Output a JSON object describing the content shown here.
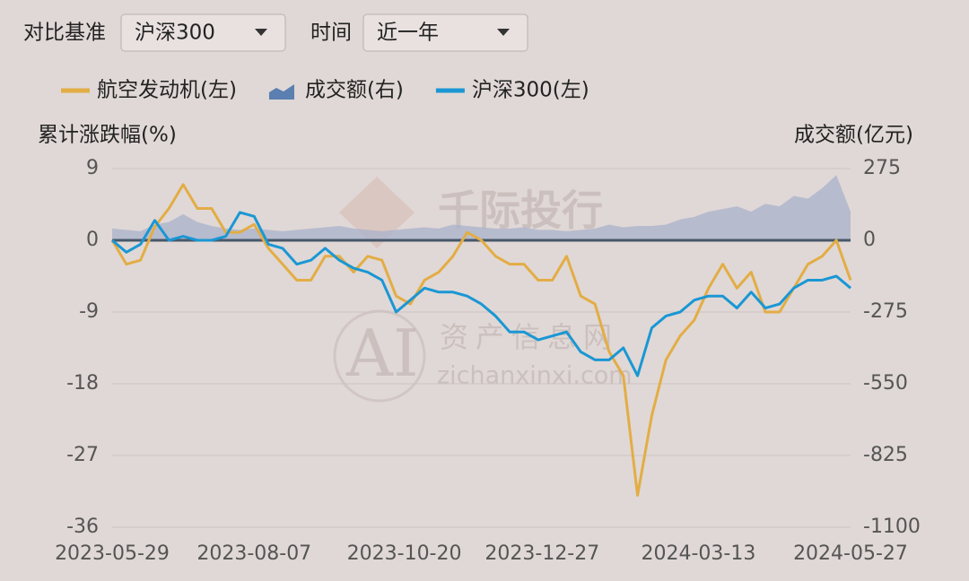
{
  "controls": {
    "benchmark_label": "对比基准",
    "benchmark_value": "沪深300",
    "time_label": "时间",
    "time_value": "近一年"
  },
  "watermark": {
    "brand": "千际投行",
    "ai": "AI",
    "site_name": "资产信息网",
    "site_url": "zichanxinxi.com"
  },
  "chart_data": {
    "type": "line",
    "y_axis_title": "累计涨跌幅(%)",
    "y2_axis_title": "成交额(亿元)",
    "x": [
      "2023-05-29",
      "2023-06-05",
      "2023-06-12",
      "2023-06-19",
      "2023-06-26",
      "2023-07-03",
      "2023-07-10",
      "2023-07-17",
      "2023-07-24",
      "2023-07-31",
      "2023-08-07",
      "2023-08-14",
      "2023-08-21",
      "2023-08-28",
      "2023-09-04",
      "2023-09-11",
      "2023-09-18",
      "2023-09-25",
      "2023-10-02",
      "2023-10-09",
      "2023-10-16",
      "2023-10-23",
      "2023-10-30",
      "2023-11-06",
      "2023-11-13",
      "2023-11-20",
      "2023-11-27",
      "2023-12-04",
      "2023-12-11",
      "2023-12-18",
      "2023-12-25",
      "2024-01-01",
      "2024-01-08",
      "2024-01-15",
      "2024-01-22",
      "2024-01-29",
      "2024-02-05",
      "2024-02-12",
      "2024-02-19",
      "2024-02-26",
      "2024-03-04",
      "2024-03-11",
      "2024-03-18",
      "2024-03-25",
      "2024-04-01",
      "2024-04-08",
      "2024-04-15",
      "2024-04-22",
      "2024-04-29",
      "2024-05-06",
      "2024-05-13",
      "2024-05-20",
      "2024-05-27"
    ],
    "xlim": [
      "2023-05-29",
      "2024-05-27"
    ],
    "xticks": [
      "2023-05-29",
      "2023-08-07",
      "2023-10-20",
      "2023-12-27",
      "2024-03-13",
      "2024-05-27"
    ],
    "ylim": [
      -36,
      9
    ],
    "yticks": [
      9,
      0,
      -9,
      -18,
      -27,
      -36
    ],
    "y2lim": [
      -1100,
      275
    ],
    "y2ticks": [
      275,
      0,
      -275,
      -550,
      -825,
      -1100
    ],
    "grid": true,
    "series": [
      {
        "name": "航空发动机(左)",
        "kind": "line",
        "color": "#e3ad45",
        "values": [
          0,
          -3,
          -2.5,
          1.7,
          4,
          7,
          4,
          4,
          1,
          1,
          2,
          -1,
          -3,
          -5,
          -5,
          -2,
          -2,
          -4,
          -2,
          -2.5,
          -7,
          -8,
          -5,
          -4,
          -2,
          1,
          0,
          -2,
          -3,
          -3,
          -5,
          -5,
          -2,
          -7,
          -8,
          -14,
          -17,
          -32,
          -22,
          -15,
          -12,
          -10,
          -6,
          -3,
          -6,
          -4,
          -9,
          -9,
          -6,
          -3,
          -2,
          0,
          -5
        ]
      },
      {
        "name": "成交额(右)",
        "kind": "area",
        "axis": "y2",
        "color": "#aab2cb",
        "values": [
          45,
          40,
          35,
          60,
          70,
          100,
          70,
          55,
          45,
          40,
          45,
          40,
          35,
          40,
          45,
          50,
          55,
          45,
          40,
          35,
          40,
          45,
          50,
          45,
          60,
          55,
          50,
          45,
          45,
          50,
          40,
          40,
          35,
          40,
          45,
          60,
          50,
          55,
          55,
          60,
          80,
          90,
          110,
          120,
          130,
          110,
          140,
          130,
          170,
          160,
          200,
          250,
          110
        ]
      },
      {
        "name": "沪深300(左)",
        "kind": "line",
        "color": "#1a97d4",
        "values": [
          0,
          -1.5,
          -0.5,
          2.5,
          0,
          0.5,
          0,
          0,
          0.5,
          3.5,
          3,
          -0.5,
          -1,
          -3,
          -2.5,
          -1,
          -2.5,
          -3.5,
          -4,
          -5,
          -9,
          -7.5,
          -6,
          -6.5,
          -6.5,
          -7,
          -8,
          -9.5,
          -11.5,
          -11.5,
          -12.5,
          -12,
          -11.5,
          -14,
          -15,
          -15,
          -13.5,
          -17,
          -11,
          -9.5,
          -9,
          -7.5,
          -7,
          -7,
          -8.5,
          -6.5,
          -8.5,
          -8,
          -6,
          -5,
          -5,
          -4.5,
          -6
        ]
      }
    ]
  }
}
